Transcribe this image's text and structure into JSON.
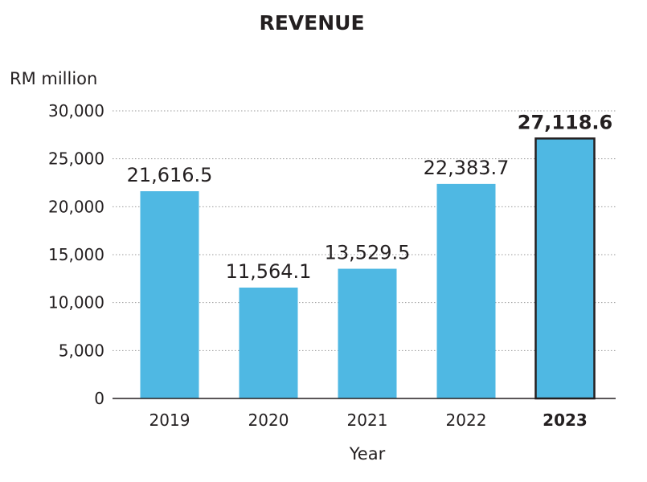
{
  "chart_data": {
    "type": "bar",
    "title": "REVENUE",
    "ylabel": "RM million",
    "xlabel": "Year",
    "categories": [
      "2019",
      "2020",
      "2021",
      "2022",
      "2023"
    ],
    "values": [
      21616.5,
      11564.1,
      13529.5,
      22383.7,
      27118.6
    ],
    "data_labels": [
      "21,616.5",
      "11,564.1",
      "13,529.5",
      "22,383.7",
      "27,118.6"
    ],
    "highlight_category": "2023",
    "ylim": [
      0,
      30000
    ],
    "yticks": [
      0,
      5000,
      10000,
      15000,
      20000,
      25000,
      30000
    ],
    "ytick_labels": [
      "0",
      "5,000",
      "10,000",
      "15,000",
      "20,000",
      "25,000",
      "30,000"
    ],
    "grid": true,
    "bar_color": "#4fb8e3",
    "highlight_border_color": "#231f20"
  }
}
